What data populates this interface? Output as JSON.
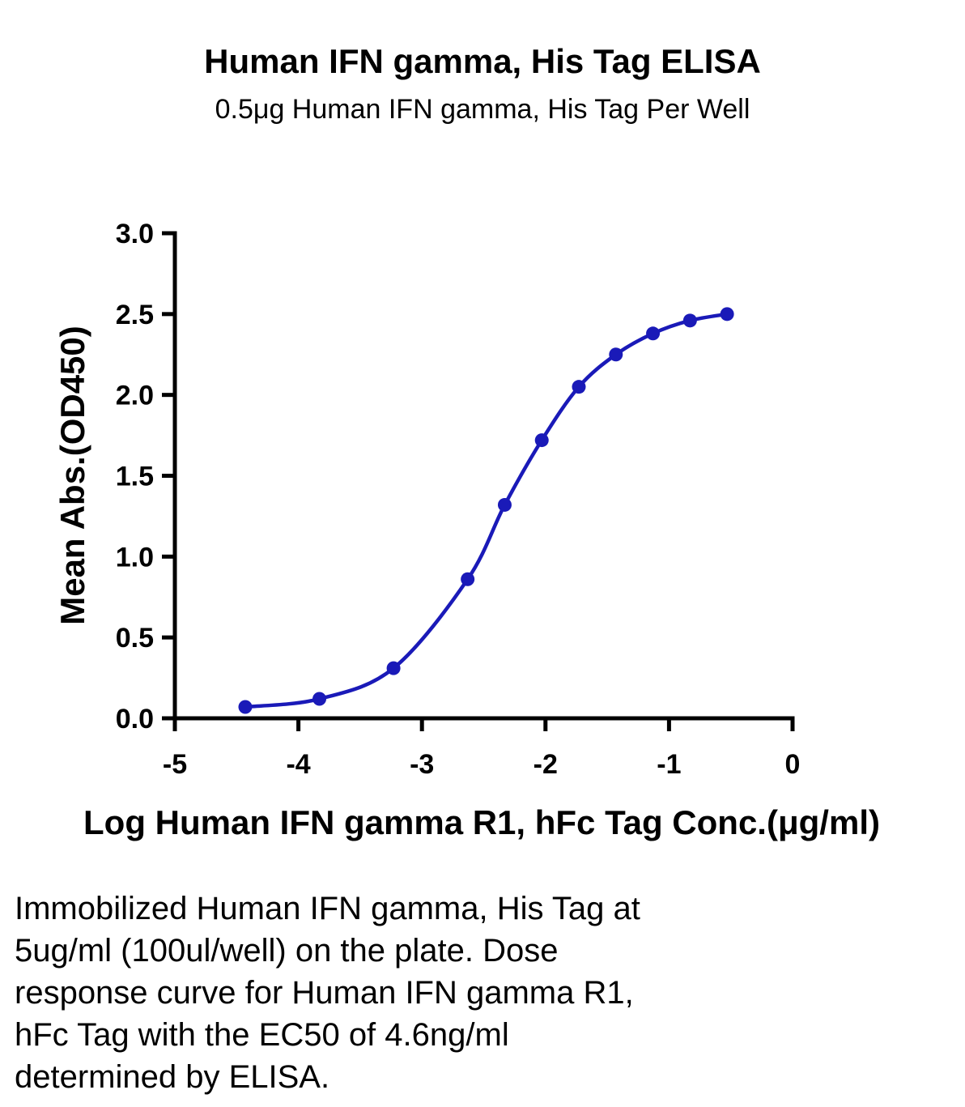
{
  "chart_data": {
    "type": "line",
    "title": "Human IFN gamma, His Tag ELISA",
    "subtitle": "0.5μg Human IFN gamma, His Tag Per Well",
    "xlabel": "Log Human IFN gamma R1, hFc Tag Conc.(μg/ml)",
    "ylabel": "Mean Abs.(OD450)",
    "xlim": [
      -5,
      0
    ],
    "ylim": [
      0,
      3
    ],
    "x_ticks": [
      "-5",
      "-4",
      "-3",
      "-2",
      "-1",
      "0"
    ],
    "y_ticks": [
      "0.0",
      "0.5",
      "1.0",
      "1.5",
      "2.0",
      "2.5",
      "3.0"
    ],
    "grid": false,
    "series": [
      {
        "color": "#1a1ab8",
        "x": [
          -4.43,
          -3.83,
          -3.23,
          -2.63,
          -2.33,
          -2.03,
          -1.73,
          -1.43,
          -1.13,
          -0.83,
          -0.53
        ],
        "y": [
          0.07,
          0.12,
          0.31,
          0.86,
          1.32,
          1.72,
          2.05,
          2.25,
          2.38,
          2.46,
          2.5
        ]
      }
    ]
  },
  "caption": "Immobilized Human IFN gamma, His Tag at\n5ug/ml (100ul/well) on the plate. Dose\nresponse curve for Human IFN gamma R1,\nhFc Tag with the EC50 of 4.6ng/ml\ndetermined by ELISA."
}
